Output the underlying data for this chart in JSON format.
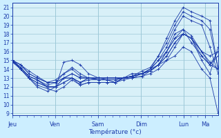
{
  "bg_color": "#cceeff",
  "plot_bg_color": "#d8f0f8",
  "grid_color": "#9dc8d8",
  "line_color": "#1a3aaa",
  "marker": "+",
  "xlabel": "Température (°c)",
  "ylim": [
    8.8,
    21.5
  ],
  "yticks": [
    9,
    10,
    11,
    12,
    13,
    14,
    15,
    16,
    17,
    18,
    19,
    20,
    21
  ],
  "x_day_labels": [
    "Jeu",
    "Ven",
    "Sam",
    "Dim",
    "Lun",
    "Ma"
  ],
  "x_day_positions": [
    0.0,
    0.208,
    0.417,
    0.625,
    0.833,
    0.938
  ],
  "xlim": [
    0.0,
    1.0
  ],
  "lines": [
    {
      "x": [
        0.0,
        0.04,
        0.08,
        0.12,
        0.17,
        0.21,
        0.25,
        0.29,
        0.33,
        0.37,
        0.42,
        0.46,
        0.5,
        0.54,
        0.58,
        0.63,
        0.67,
        0.71,
        0.75,
        0.79,
        0.83,
        0.87,
        0.92,
        0.96,
        1.0
      ],
      "y": [
        15.0,
        14.5,
        13.5,
        13.0,
        12.5,
        12.5,
        13.0,
        13.0,
        12.5,
        13.0,
        13.0,
        13.0,
        13.0,
        13.0,
        13.5,
        13.5,
        14.0,
        14.5,
        15.0,
        16.5,
        18.0,
        17.5,
        16.0,
        15.5,
        16.0
      ]
    },
    {
      "x": [
        0.0,
        0.04,
        0.08,
        0.12,
        0.17,
        0.21,
        0.25,
        0.29,
        0.33,
        0.37,
        0.42,
        0.46,
        0.5,
        0.54,
        0.58,
        0.63,
        0.67,
        0.71,
        0.75,
        0.79,
        0.83,
        0.87,
        0.92,
        0.96,
        1.0
      ],
      "y": [
        15.0,
        14.2,
        13.2,
        12.8,
        12.0,
        12.0,
        12.5,
        13.0,
        12.5,
        13.0,
        12.8,
        12.8,
        12.8,
        13.0,
        13.2,
        13.5,
        14.0,
        15.0,
        16.0,
        18.0,
        18.5,
        17.0,
        15.5,
        14.5,
        15.5
      ]
    },
    {
      "x": [
        0.0,
        0.04,
        0.08,
        0.12,
        0.17,
        0.21,
        0.25,
        0.29,
        0.33,
        0.37,
        0.42,
        0.46,
        0.5,
        0.54,
        0.58,
        0.63,
        0.67,
        0.71,
        0.75,
        0.79,
        0.83,
        0.87,
        0.92,
        0.96,
        1.0
      ],
      "y": [
        15.0,
        14.0,
        13.0,
        12.5,
        12.0,
        12.0,
        14.8,
        15.0,
        14.5,
        13.5,
        13.0,
        12.8,
        12.5,
        13.0,
        13.2,
        13.5,
        14.0,
        15.5,
        17.5,
        19.5,
        21.0,
        20.5,
        20.0,
        19.5,
        14.0
      ]
    },
    {
      "x": [
        0.0,
        0.04,
        0.08,
        0.12,
        0.17,
        0.21,
        0.25,
        0.29,
        0.33,
        0.37,
        0.42,
        0.46,
        0.5,
        0.54,
        0.58,
        0.63,
        0.67,
        0.71,
        0.75,
        0.79,
        0.83,
        0.87,
        0.92,
        0.96,
        1.0
      ],
      "y": [
        15.0,
        14.2,
        13.2,
        12.8,
        12.2,
        12.5,
        13.5,
        14.2,
        13.5,
        13.0,
        12.8,
        12.8,
        12.5,
        13.0,
        13.2,
        13.8,
        14.2,
        15.5,
        17.0,
        19.0,
        20.5,
        20.0,
        19.5,
        18.5,
        14.0
      ]
    },
    {
      "x": [
        0.0,
        0.04,
        0.08,
        0.12,
        0.17,
        0.21,
        0.25,
        0.29,
        0.33,
        0.37,
        0.42,
        0.46,
        0.5,
        0.54,
        0.58,
        0.63,
        0.67,
        0.71,
        0.75,
        0.79,
        0.83,
        0.87,
        0.92,
        0.96,
        1.0
      ],
      "y": [
        15.0,
        14.0,
        13.0,
        12.0,
        11.5,
        12.0,
        13.0,
        13.0,
        12.2,
        12.5,
        12.5,
        12.5,
        12.5,
        13.0,
        13.0,
        13.5,
        13.8,
        14.5,
        16.0,
        17.5,
        18.0,
        17.5,
        15.0,
        13.5,
        16.5
      ]
    },
    {
      "x": [
        0.0,
        0.04,
        0.08,
        0.12,
        0.17,
        0.21,
        0.25,
        0.29,
        0.33,
        0.37,
        0.42,
        0.46,
        0.5,
        0.54,
        0.58,
        0.63,
        0.67,
        0.71,
        0.75,
        0.79,
        0.83,
        0.87,
        0.92,
        0.96,
        1.0
      ],
      "y": [
        15.0,
        14.5,
        13.5,
        13.0,
        12.5,
        12.5,
        13.0,
        13.5,
        13.0,
        13.0,
        13.0,
        13.0,
        13.0,
        13.0,
        13.2,
        13.5,
        13.8,
        14.5,
        15.5,
        17.0,
        18.0,
        17.5,
        15.5,
        14.5,
        16.0
      ]
    },
    {
      "x": [
        0.0,
        0.04,
        0.08,
        0.12,
        0.17,
        0.21,
        0.25,
        0.29,
        0.33,
        0.37,
        0.42,
        0.46,
        0.5,
        0.54,
        0.58,
        0.63,
        0.67,
        0.71,
        0.75,
        0.79,
        0.83,
        0.87,
        0.92,
        0.96,
        1.0
      ],
      "y": [
        15.0,
        14.5,
        13.8,
        13.2,
        12.5,
        12.8,
        13.5,
        14.0,
        13.2,
        13.0,
        13.0,
        13.0,
        13.0,
        13.0,
        13.2,
        13.5,
        14.0,
        15.0,
        16.5,
        18.5,
        20.0,
        19.5,
        19.0,
        16.5,
        13.5
      ]
    },
    {
      "x": [
        0.0,
        0.04,
        0.08,
        0.12,
        0.17,
        0.21,
        0.25,
        0.29,
        0.33,
        0.37,
        0.42,
        0.46,
        0.5,
        0.54,
        0.58,
        0.63,
        0.67,
        0.71,
        0.75,
        0.79,
        0.83,
        0.87,
        0.92,
        0.96,
        1.0
      ],
      "y": [
        14.8,
        14.0,
        13.0,
        12.5,
        12.0,
        12.0,
        12.5,
        13.0,
        12.5,
        12.8,
        12.8,
        12.8,
        12.8,
        13.0,
        13.2,
        13.5,
        13.8,
        14.5,
        16.0,
        17.5,
        18.5,
        17.8,
        16.0,
        14.5,
        14.0
      ]
    },
    {
      "x": [
        0.0,
        0.04,
        0.08,
        0.12,
        0.17,
        0.21,
        0.25,
        0.29,
        0.33,
        0.37,
        0.42,
        0.46,
        0.5,
        0.54,
        0.58,
        0.63,
        0.67,
        0.71,
        0.75,
        0.79,
        0.83,
        0.87,
        0.92,
        0.96,
        1.0
      ],
      "y": [
        15.0,
        14.0,
        13.0,
        12.2,
        11.8,
        11.5,
        12.0,
        12.8,
        12.2,
        12.5,
        12.5,
        12.5,
        12.5,
        12.8,
        13.0,
        13.2,
        13.5,
        14.0,
        15.0,
        15.5,
        16.5,
        16.0,
        14.0,
        13.0,
        9.0
      ]
    },
    {
      "x": [
        0.0,
        0.04,
        0.08,
        0.12,
        0.17,
        0.21,
        0.25,
        0.29,
        0.33,
        0.37,
        0.42,
        0.46,
        0.5,
        0.54,
        0.58,
        0.63,
        0.67,
        0.71,
        0.75,
        0.79,
        0.83,
        0.87,
        0.92,
        0.96,
        1.0
      ],
      "y": [
        14.8,
        14.2,
        13.2,
        12.8,
        12.0,
        12.0,
        13.0,
        13.5,
        13.0,
        13.0,
        13.0,
        13.0,
        13.0,
        13.0,
        13.0,
        13.2,
        13.8,
        14.5,
        15.5,
        17.0,
        18.0,
        17.5,
        16.0,
        14.8,
        14.0
      ]
    }
  ]
}
